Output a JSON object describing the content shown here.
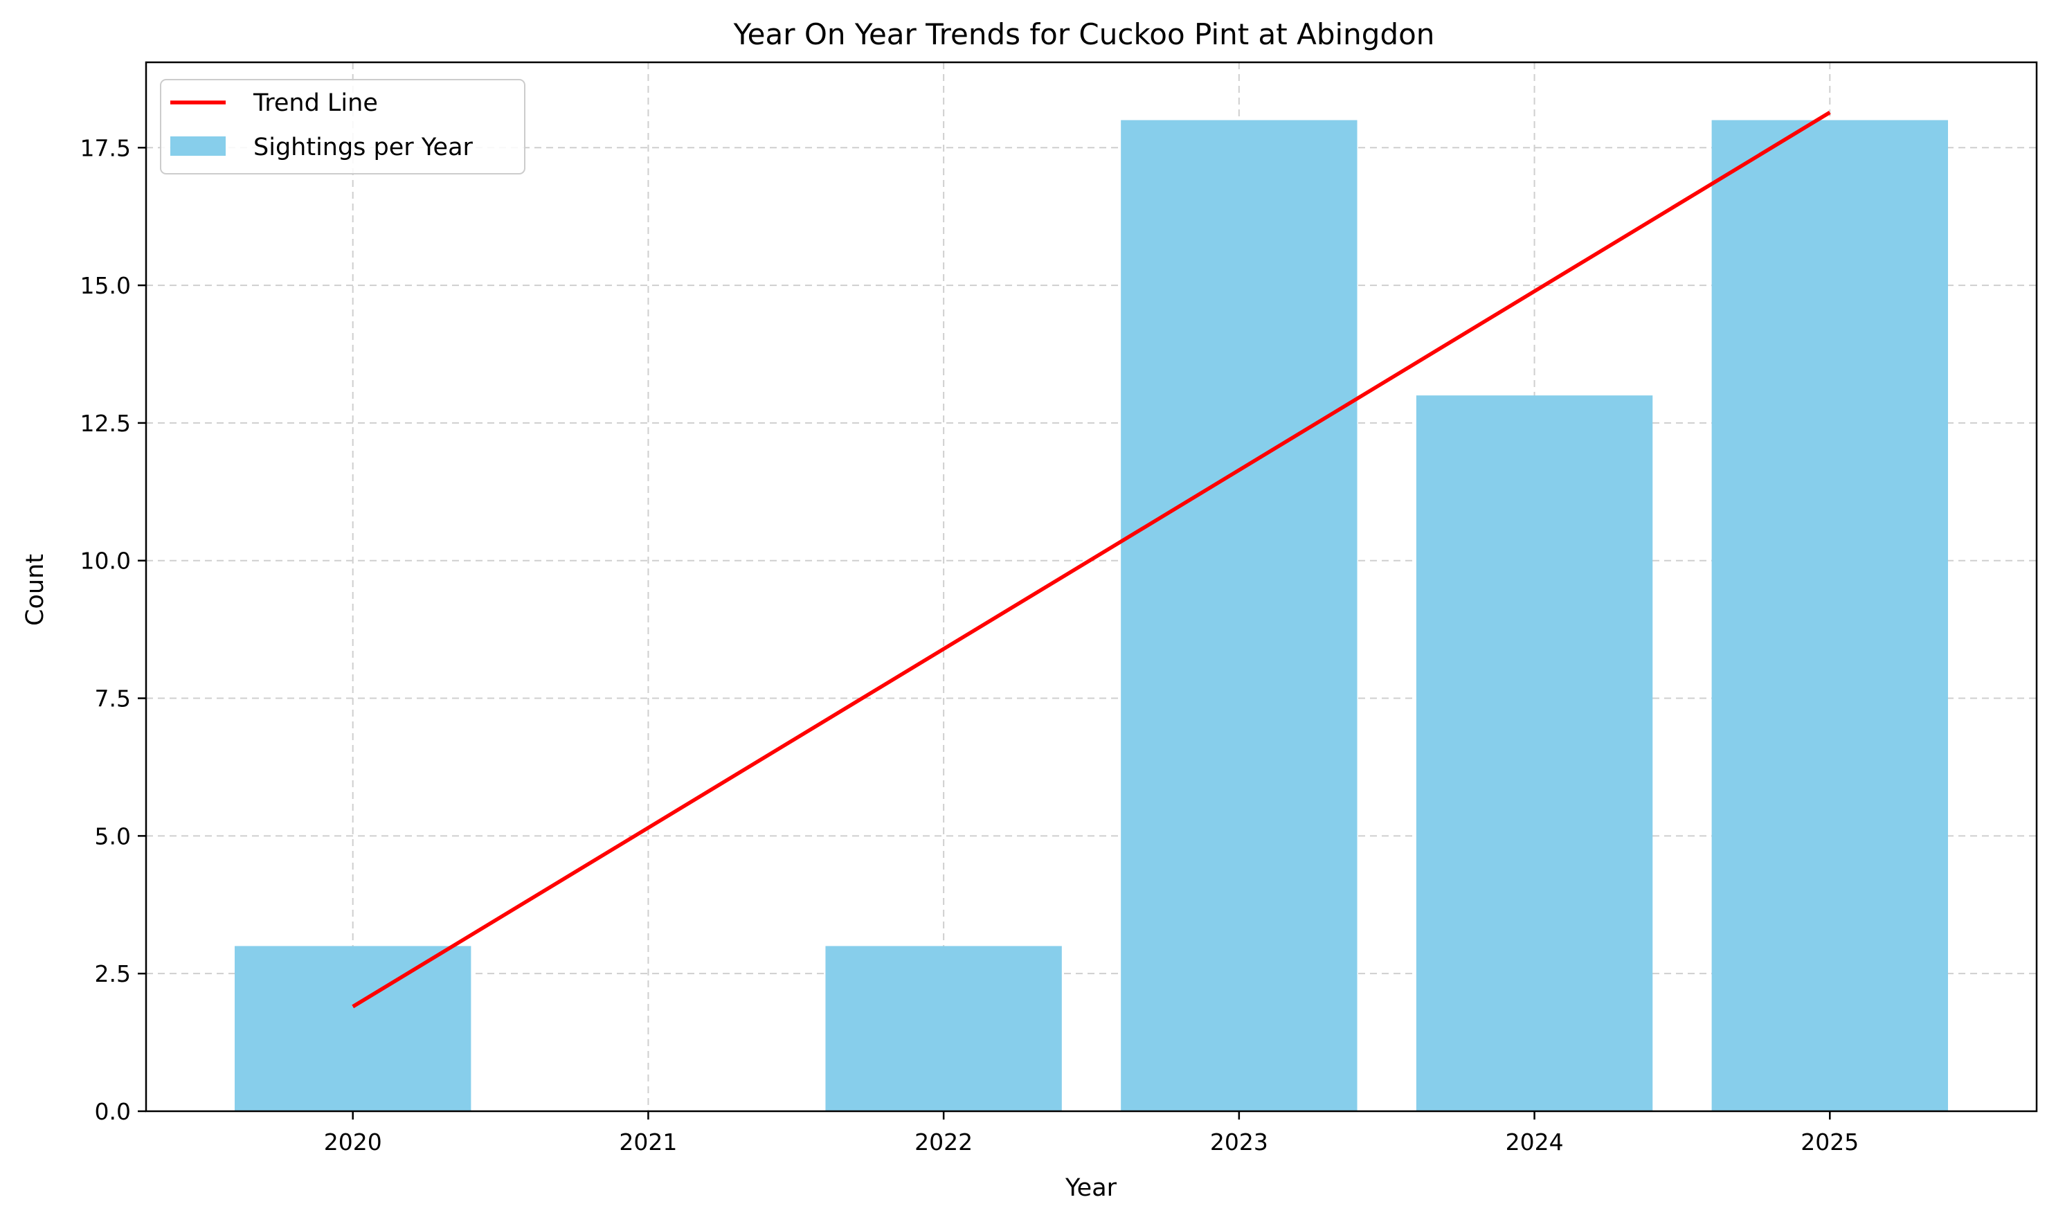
{
  "chart_data": {
    "type": "bar",
    "title": "Year On Year Trends for Cuckoo Pint at Abingdon",
    "xlabel": "Year",
    "ylabel": "Count",
    "categories": [
      "2020",
      "2021",
      "2022",
      "2023",
      "2024",
      "2025"
    ],
    "series": [
      {
        "name": "Sightings per Year",
        "type": "bar",
        "values": [
          3,
          0,
          3,
          18,
          13,
          18
        ],
        "color": "#87CEEB"
      },
      {
        "name": "Trend Line",
        "type": "line",
        "x": [
          "2020",
          "2025"
        ],
        "values": [
          1.9,
          18.14
        ],
        "color": "#FF0000"
      }
    ],
    "ylim": [
      0,
      19.05
    ],
    "yticks": [
      0.0,
      2.5,
      5.0,
      7.5,
      10.0,
      12.5,
      15.0,
      17.5
    ],
    "ytick_labels": [
      "0.0",
      "2.5",
      "5.0",
      "7.5",
      "10.0",
      "12.5",
      "15.0",
      "17.5"
    ],
    "grid": true,
    "legend_position": "top-left"
  }
}
